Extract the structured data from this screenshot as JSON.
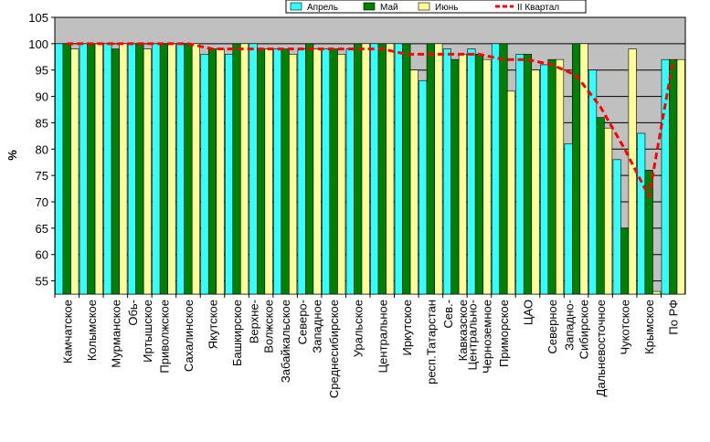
{
  "chart_data": {
    "type": "bar",
    "ylabel": "%",
    "ylim": [
      52.5,
      105
    ],
    "yticks": [
      55,
      60,
      65,
      70,
      75,
      80,
      85,
      90,
      95,
      100,
      105
    ],
    "grid": true,
    "legend_position": "top-right",
    "plot_background": "#c0c0c0",
    "categories": [
      "Камчатское",
      "Колымское",
      "Мурманское",
      "Обь-Иртышское",
      "Приволжское",
      "Сахалинское",
      "Якутское",
      "Башкирское",
      "Верхне-Волжское",
      "Забайкальское",
      "Северо-Западное",
      "Среднесибирское",
      "Уральское",
      "Центральное",
      "Иркутское",
      "респ.Татарстан",
      "Сев.-Кавказское",
      "Центрально-Черноземное",
      "Приморское",
      "ЦАО",
      "Северное",
      "Западно-Сибирское",
      "Дальневосточное",
      "Чукотское",
      "Крымское",
      "По РФ"
    ],
    "category_lines": [
      [
        "Камчатское"
      ],
      [
        "Колымское"
      ],
      [
        "Мурманское"
      ],
      [
        "Обь-",
        "Иртышское"
      ],
      [
        "Приволжское"
      ],
      [
        "Сахалинское"
      ],
      [
        "Якутское"
      ],
      [
        "Башкирское"
      ],
      [
        "Верхне-",
        "Волжское"
      ],
      [
        "Забайкальское"
      ],
      [
        "Северо-",
        "Западное"
      ],
      [
        "Среднесибирское"
      ],
      [
        "Уральское"
      ],
      [
        "Центральное"
      ],
      [
        "Иркутское"
      ],
      [
        "респ.Татарстан"
      ],
      [
        "Сев.-",
        "Кавказское"
      ],
      [
        "Центрально-",
        "Черноземное"
      ],
      [
        "Приморское"
      ],
      [
        "ЦАО"
      ],
      [
        "Северное"
      ],
      [
        "Западно-",
        "Сибирское"
      ],
      [
        "Дальневосточное"
      ],
      [
        "Чукотское"
      ],
      [
        "Крымское"
      ],
      [
        "По РФ"
      ]
    ],
    "series": [
      {
        "name": "Апрель",
        "type": "bar",
        "color": "#33ffff",
        "values": [
          100,
          100,
          100,
          100,
          100,
          100,
          98,
          98,
          100,
          99,
          99,
          99,
          99,
          100,
          100,
          93,
          99,
          99,
          100,
          98,
          96,
          81,
          95,
          78,
          83,
          97
        ]
      },
      {
        "name": "Май",
        "type": "bar",
        "color": "#008000",
        "values": [
          100,
          100,
          99,
          100,
          100,
          100,
          99,
          100,
          99,
          99,
          100,
          99,
          100,
          100,
          100,
          100,
          97,
          98,
          100,
          98,
          97,
          100,
          86,
          65,
          76,
          97
        ]
      },
      {
        "name": "Июнь",
        "type": "bar",
        "color": "#ffff99",
        "values": [
          99,
          100,
          100,
          99,
          100,
          100,
          99,
          100,
          99,
          98,
          99,
          98,
          100,
          100,
          95,
          100,
          98,
          97,
          91,
          95,
          97,
          100,
          84,
          99,
          53,
          97
        ]
      },
      {
        "name": "II Квартал",
        "type": "line",
        "color": "#ff0000",
        "dashed": true,
        "values": [
          100,
          100,
          100,
          100,
          100,
          100,
          99,
          99,
          99,
          99,
          99,
          99,
          99,
          99,
          98,
          98,
          98,
          98,
          97,
          97,
          96,
          94,
          88,
          80,
          71,
          97
        ]
      }
    ]
  }
}
